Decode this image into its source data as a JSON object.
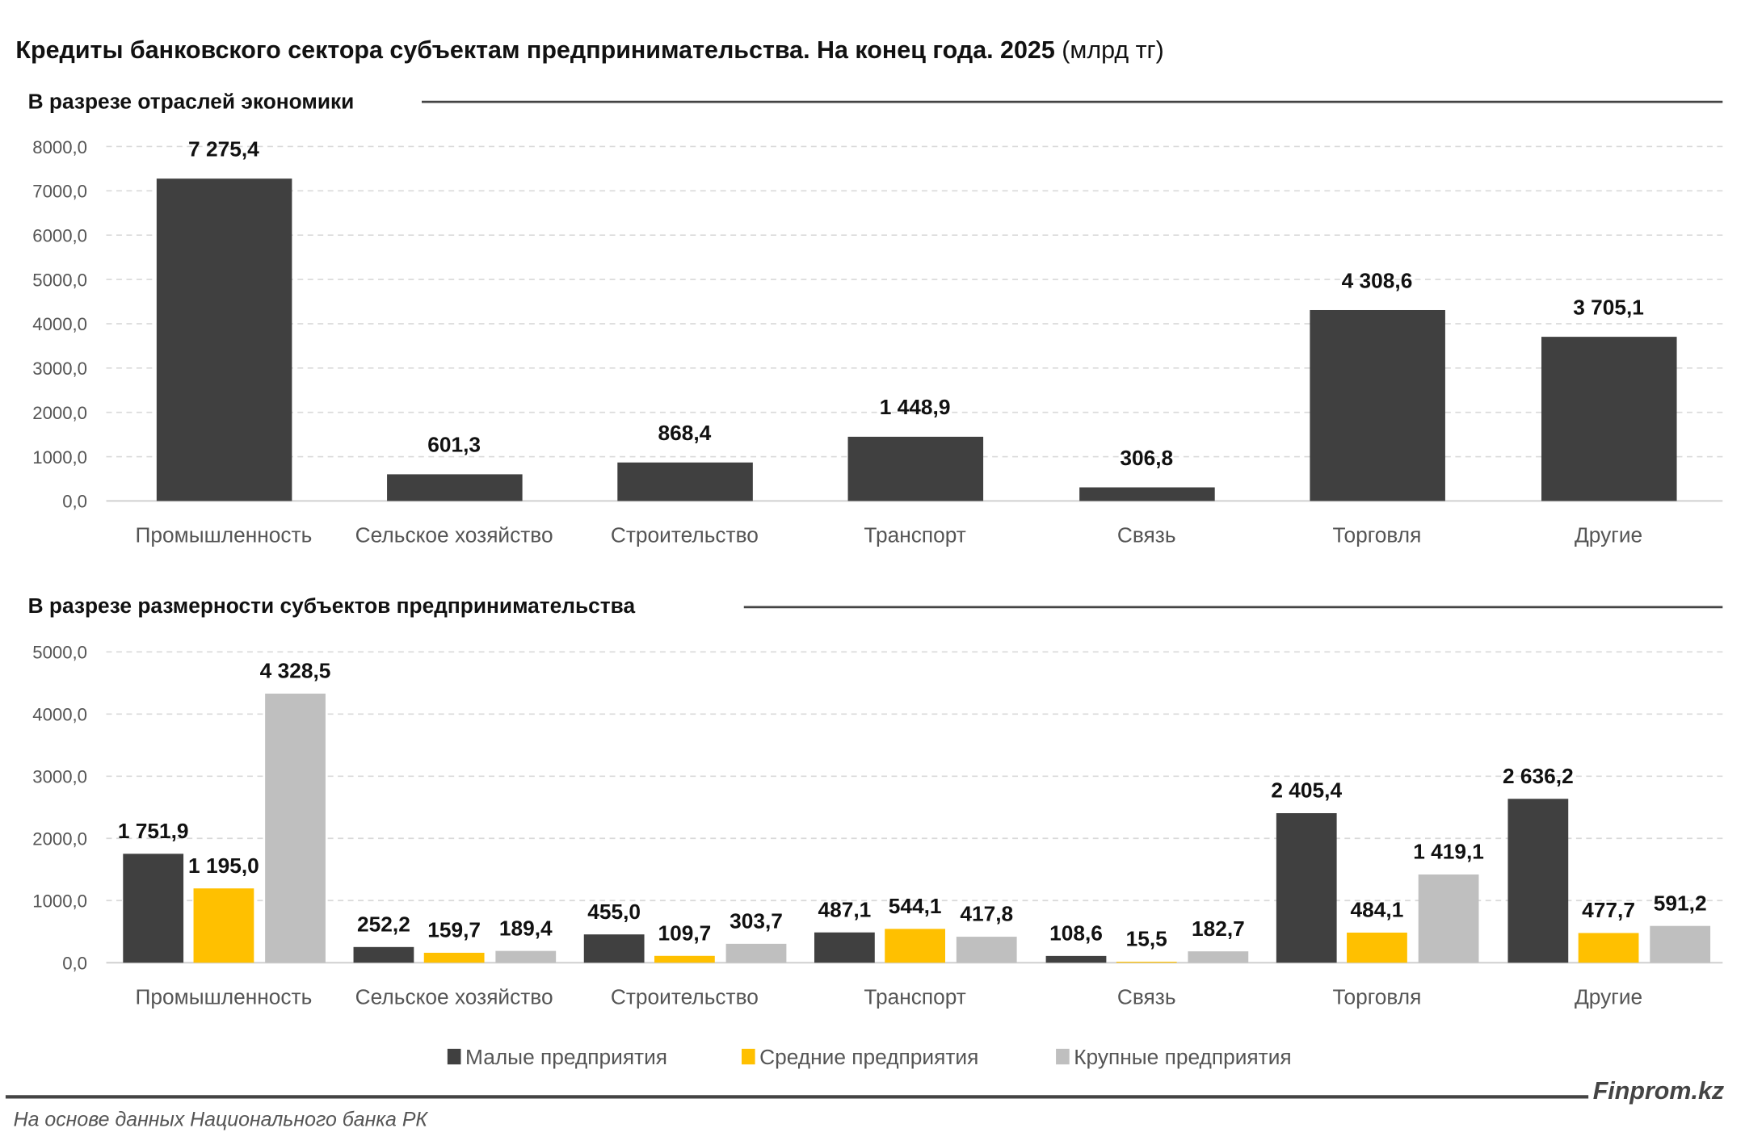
{
  "title": "Кредиты банковского сектора субъектам предпринимательства. На конец года. 2025",
  "title_unit": "(млрд тг)",
  "brand": "Finprom.kz",
  "source": "На основе данных Национального банка РК",
  "colors": {
    "small": "#404040",
    "medium": "#FFC000",
    "large": "#BFBFBF",
    "total": "#404040"
  },
  "chart_data": [
    {
      "type": "bar",
      "title": "В разрезе отраслей экономики",
      "categories": [
        "Промышленность",
        "Сельское хозяйство",
        "Строительство",
        "Транспорт",
        "Связь",
        "Торговля",
        "Другие"
      ],
      "values": [
        7275.4,
        601.3,
        868.4,
        1448.9,
        306.8,
        4308.6,
        3705.1
      ],
      "value_labels": [
        "7 275,4",
        "601,3",
        "868,4",
        "1 448,9",
        "306,8",
        "4 308,6",
        "3 705,1"
      ],
      "ylim": [
        0,
        8000
      ],
      "yticks": [
        "0,0",
        "1000,0",
        "2000,0",
        "3000,0",
        "4000,0",
        "5000,0",
        "6000,0",
        "7000,0",
        "8000,0"
      ],
      "grid": true
    },
    {
      "type": "bar",
      "title": "В разрезе размерности субъектов предпринимательства",
      "categories": [
        "Промышленность",
        "Сельское хозяйство",
        "Строительство",
        "Транспорт",
        "Связь",
        "Торговля",
        "Другие"
      ],
      "series": [
        {
          "name": "Малые предприятия",
          "values": [
            1751.9,
            252.2,
            455.0,
            487.1,
            108.6,
            2405.4,
            2636.2
          ],
          "value_labels": [
            "1 751,9",
            "252,2",
            "455,0",
            "487,1",
            "108,6",
            "2 405,4",
            "2 636,2"
          ]
        },
        {
          "name": "Средние предприятия",
          "values": [
            1195.0,
            159.7,
            109.7,
            544.1,
            15.5,
            484.1,
            477.7
          ],
          "value_labels": [
            "1 195,0",
            "159,7",
            "109,7",
            "544,1",
            "15,5",
            "484,1",
            "477,7"
          ]
        },
        {
          "name": "Крупные предприятия",
          "values": [
            4328.5,
            189.4,
            303.7,
            417.8,
            182.7,
            1419.1,
            591.2
          ],
          "value_labels": [
            "4 328,5",
            "189,4",
            "303,7",
            "417,8",
            "182,7",
            "1 419,1",
            "591,2"
          ]
        }
      ],
      "ylim": [
        0,
        5000
      ],
      "yticks": [
        "0,0",
        "1000,0",
        "2000,0",
        "3000,0",
        "4000,0",
        "5000,0"
      ],
      "grid": true,
      "legend_position": "bottom"
    }
  ]
}
